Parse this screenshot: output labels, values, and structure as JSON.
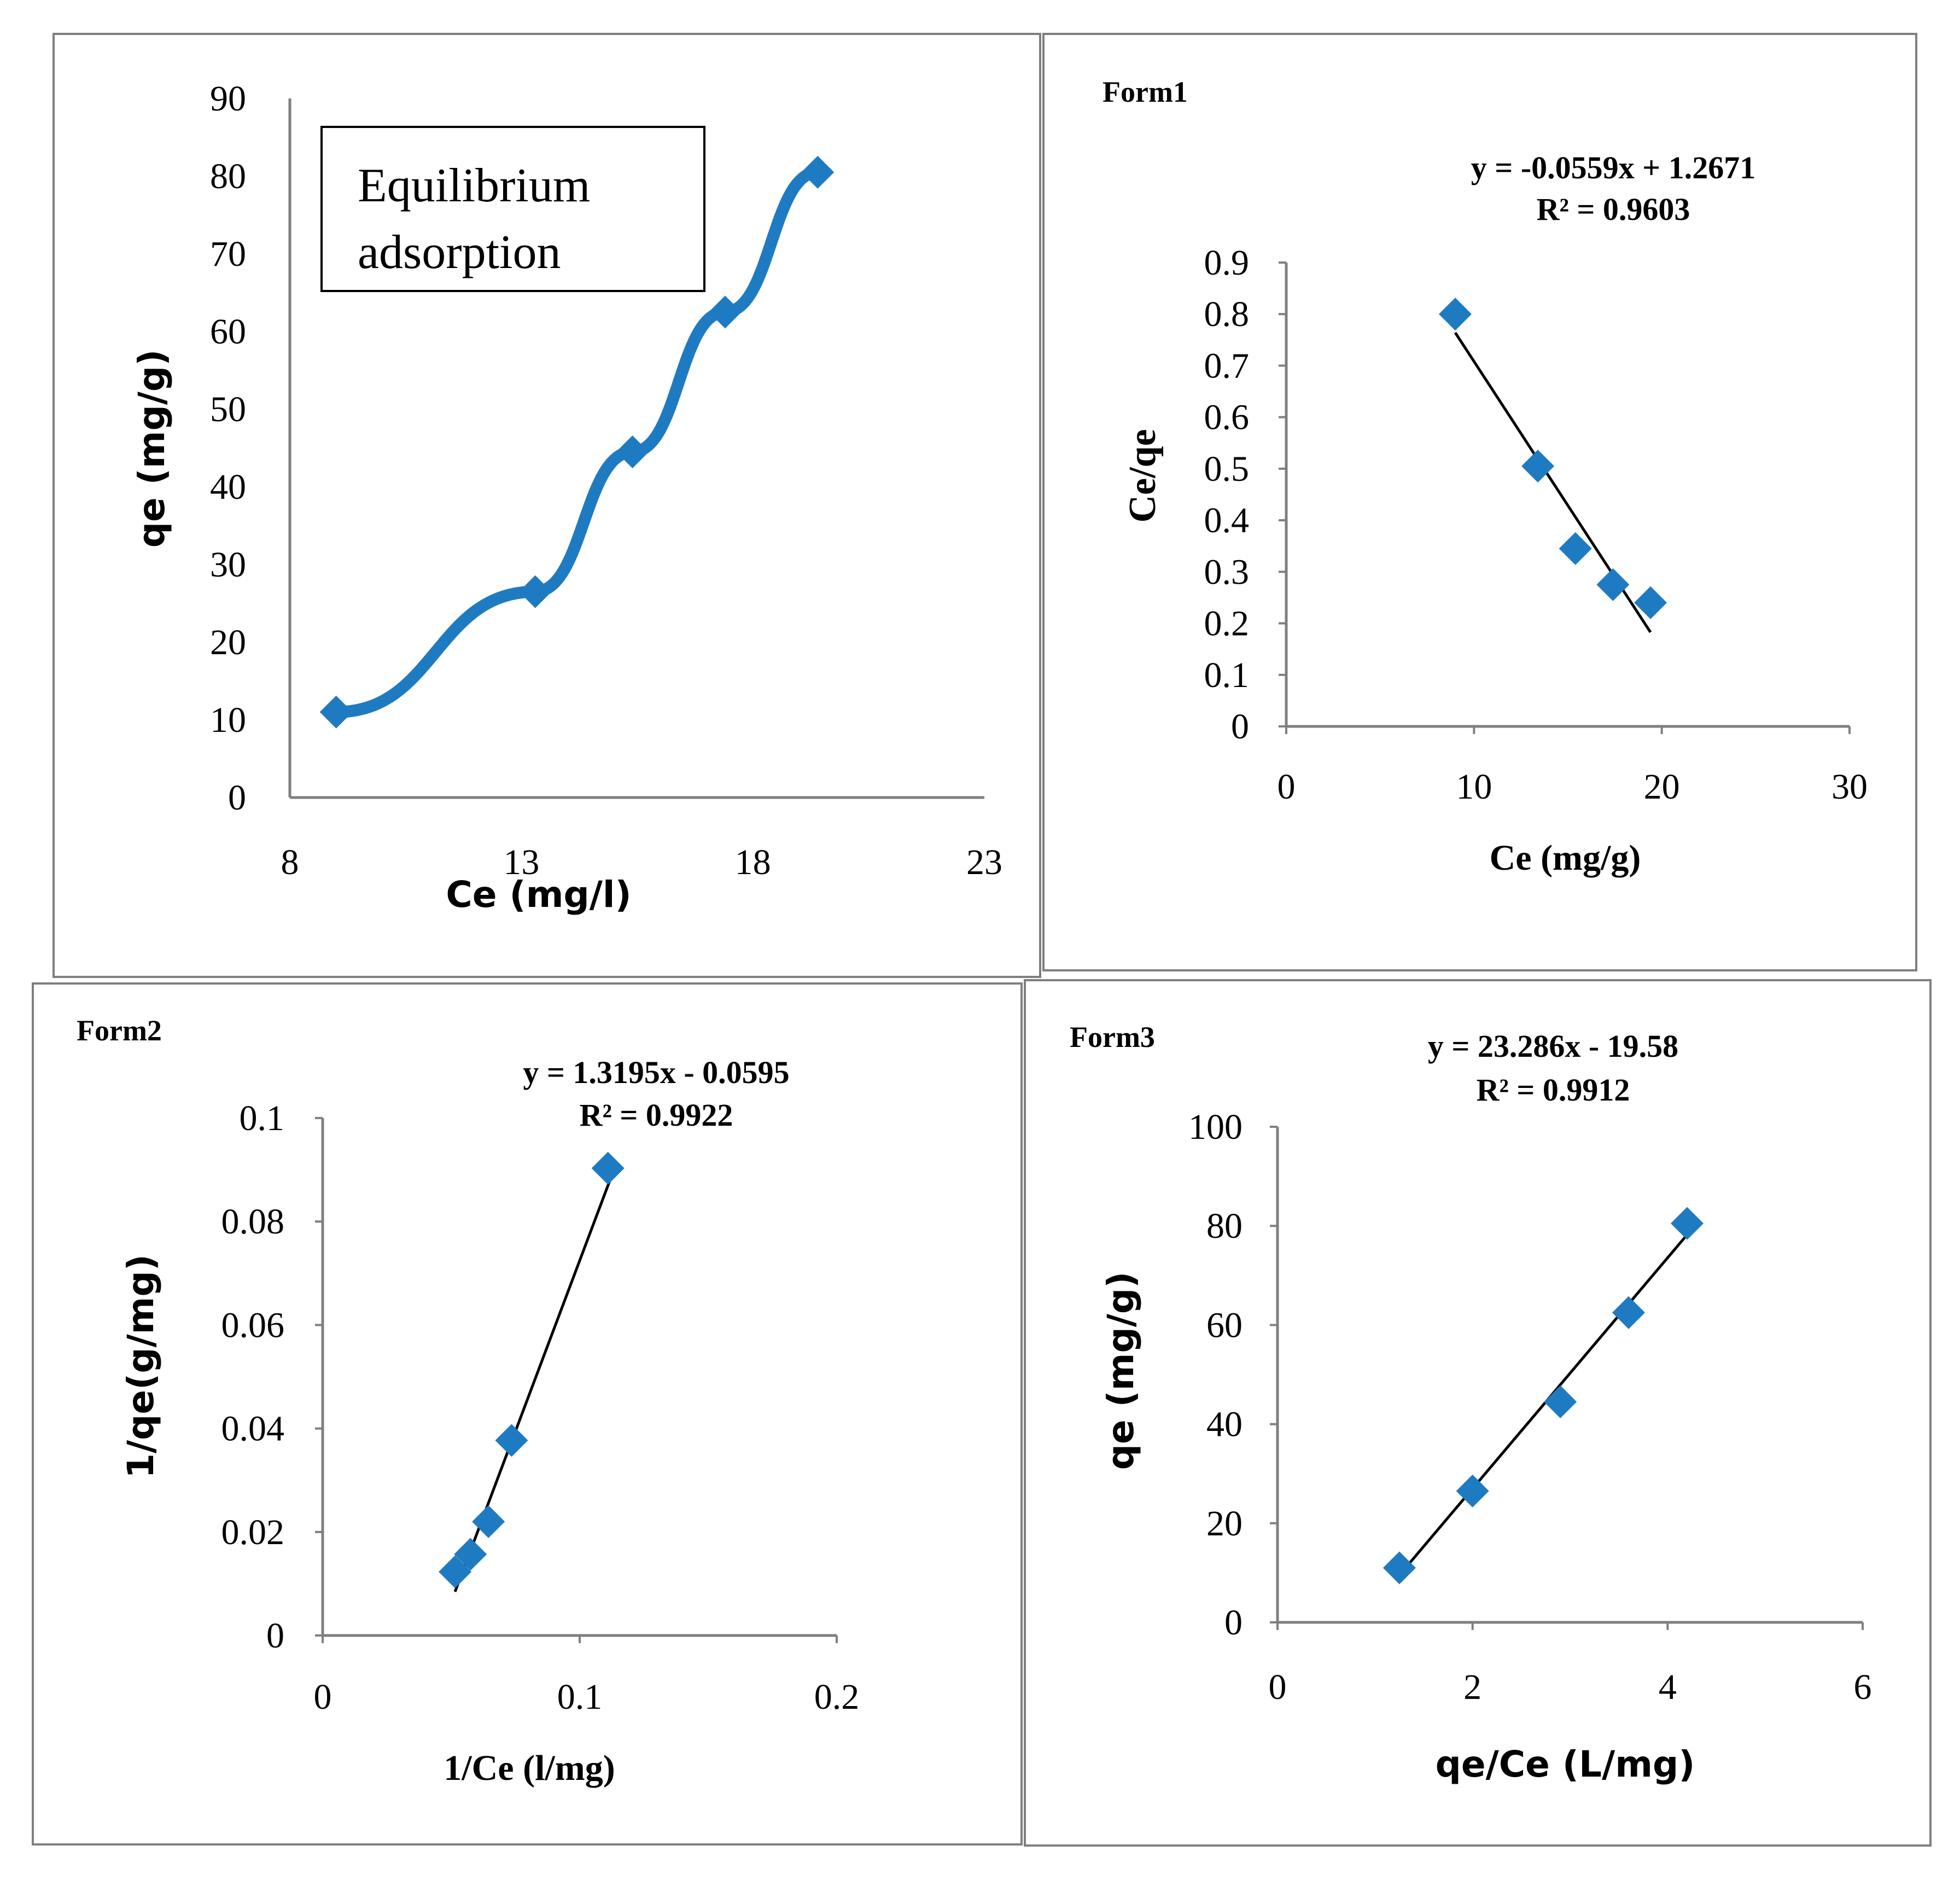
{
  "colors": {
    "series": "#1f7bc1",
    "trend": "#000000",
    "axis": "#7f7f7f",
    "border": "#7f7f7f"
  },
  "chart_data": [
    {
      "type": "line",
      "title": "",
      "annotation_lines": [
        "Equilibrium",
        "adsorption"
      ],
      "xlabel": "Ce (mg/l)",
      "ylabel": "qe (mg/g)",
      "xlim": [
        8,
        23
      ],
      "ylim": [
        0,
        90
      ],
      "xticks": [
        "8",
        "13",
        "18",
        "23"
      ],
      "yticks": [
        "0",
        "10",
        "20",
        "30",
        "40",
        "50",
        "60",
        "70",
        "80",
        "90"
      ],
      "series": [
        {
          "name": "qe",
          "x": [
            9,
            13.3,
            15.4,
            17.4,
            19.4
          ],
          "y": [
            11,
            26.5,
            44.5,
            62.5,
            80.5
          ]
        }
      ]
    },
    {
      "type": "scatter",
      "title": "Form1",
      "equation": "y = -0.0559x + 1.2671",
      "r2": "R² = 0.9603",
      "xlabel": "Ce (mg/g)",
      "ylabel": "Ce/qe",
      "xlim": [
        0,
        30
      ],
      "ylim": [
        0,
        0.9
      ],
      "xticks": [
        "0",
        "10",
        "20",
        "30"
      ],
      "yticks": [
        "0",
        "0.1",
        "0.2",
        "0.3",
        "0.4",
        "0.5",
        "0.6",
        "0.7",
        "0.8",
        "0.9"
      ],
      "series": [
        {
          "name": "Ce/qe",
          "x": [
            9,
            13.4,
            15.4,
            17.4,
            19.4
          ],
          "y": [
            0.8,
            0.505,
            0.345,
            0.275,
            0.24
          ]
        }
      ],
      "trendline": {
        "slope": -0.0559,
        "intercept": 1.2671,
        "x_range": [
          9,
          19.4
        ]
      }
    },
    {
      "type": "scatter",
      "title": "Form2",
      "equation": "y = 1.3195x - 0.0595",
      "r2": "R² = 0.9922",
      "xlabel": "1/Ce (l/mg)",
      "ylabel": "1/qe(g/mg)",
      "xlim": [
        0,
        0.2
      ],
      "ylim": [
        0,
        0.1
      ],
      "xticks": [
        "0",
        "0.1",
        "0.2"
      ],
      "yticks": [
        "0",
        "0.02",
        "0.04",
        "0.06",
        "0.08",
        "0.1"
      ],
      "series": [
        {
          "name": "1/qe",
          "x": [
            0.0515,
            0.0575,
            0.0645,
            0.0735,
            0.111
          ],
          "y": [
            0.0123,
            0.0157,
            0.022,
            0.0377,
            0.0903
          ]
        }
      ],
      "trendline": {
        "slope": 1.3195,
        "intercept": -0.0595,
        "x_range": [
          0.0515,
          0.1132
        ]
      }
    },
    {
      "type": "scatter",
      "title": "Form3",
      "equation": "y = 23.286x - 19.58",
      "r2": "R² = 0.9912",
      "xlabel": "qe/Ce (L/mg)",
      "ylabel": "qe (mg/g)",
      "xlim": [
        0,
        6
      ],
      "ylim": [
        0,
        100
      ],
      "xticks": [
        "0",
        "2",
        "4",
        "6"
      ],
      "yticks": [
        "0",
        "20",
        "40",
        "60",
        "80",
        "100"
      ],
      "series": [
        {
          "name": "qe",
          "x": [
            1.25,
            2.0,
            2.9,
            3.6,
            4.2
          ],
          "y": [
            11,
            26.5,
            44.5,
            62.5,
            80.5
          ]
        }
      ],
      "trendline": {
        "slope": 23.286,
        "intercept": -19.58,
        "x_range": [
          1.25,
          4.2
        ]
      }
    }
  ]
}
